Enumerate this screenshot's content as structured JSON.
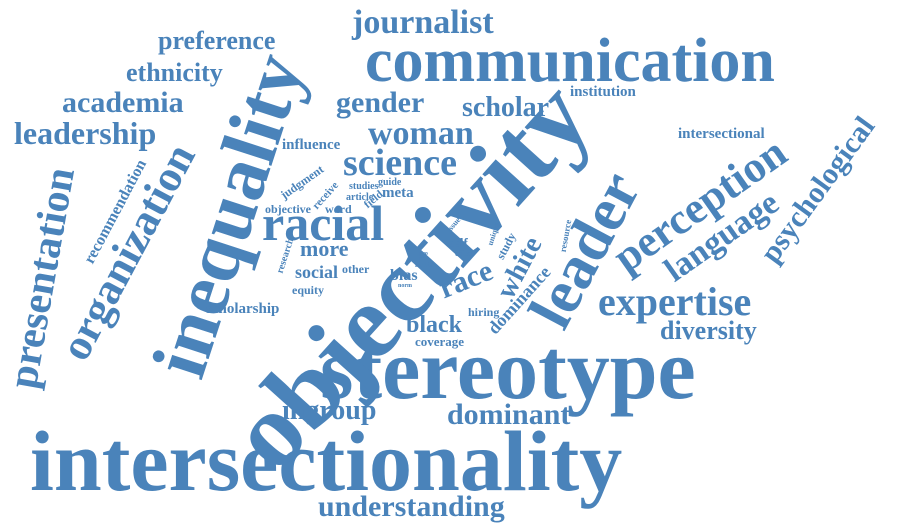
{
  "colors": {
    "word": "#4a83ba",
    "background": "#ffffff"
  },
  "words": {
    "intersectionality": "intersectionality",
    "objectivity": "objectivity",
    "stereotype": "stereotype",
    "inequality": "inequality",
    "communication": "communication",
    "leader": "leader",
    "organization": "organization",
    "presentation": "presentation",
    "racial": "racial",
    "perception": "perception",
    "expertise": "expertise",
    "science": "science",
    "woman": "woman",
    "journalist": "journalist",
    "gender": "gender",
    "scholar": "scholar",
    "academia": "academia",
    "leadership": "leadership",
    "ethnicity": "ethnicity",
    "preference": "preference",
    "language": "language",
    "psychological": "psychological",
    "diversity": "diversity",
    "dominant": "dominant",
    "understanding": "understanding",
    "ingroup": "ingroup",
    "race": "race",
    "white": "white",
    "dominance": "dominance",
    "black": "black",
    "more": "more",
    "social": "social",
    "institution": "institution",
    "intersectional": "intersectional",
    "influence": "influence",
    "recommendation": "recommendation",
    "scholarship": "scholarship",
    "bias": "bias",
    "coverage": "coverage",
    "hiring": "hiring",
    "meta": "meta",
    "self": "self",
    "study": "study",
    "equity": "equity",
    "other": "other",
    "judgment": "judgment",
    "receive": "receive",
    "word": "word",
    "objective": "objective",
    "research": "research",
    "studies": "studies",
    "guide": "guide",
    "article": "article",
    "field": "field",
    "issue": "issue",
    "unique": "unique",
    "resource": "resource",
    "effect": "effect",
    "media": "media",
    "norm": "norm",
    "pro": "pro",
    "role": "role"
  }
}
